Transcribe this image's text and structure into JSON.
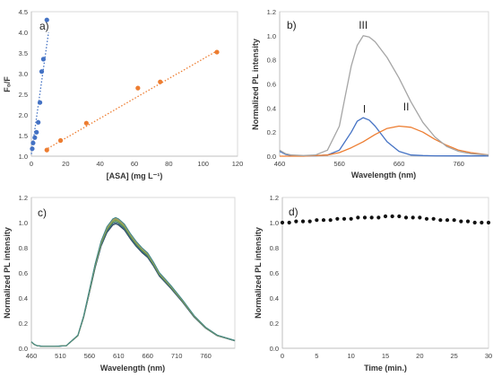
{
  "chart_data": [
    {
      "type": "scatter",
      "panel_label": "a)",
      "xlabel": "[ASA] (mg L⁻¹)",
      "ylabel": "F₀/F",
      "xlim": [
        0,
        120
      ],
      "ylim": [
        1.0,
        4.5
      ],
      "xticks": [
        "0",
        "20",
        "40",
        "60",
        "80",
        "100",
        "120"
      ],
      "yticks": [
        "1.0",
        "1.5",
        "2.0",
        "2.5",
        "3.0",
        "3.5",
        "4.0",
        "4.5"
      ],
      "grid": false,
      "colors": {
        "blue": "#4472c4",
        "orange": "#ed7d31"
      },
      "series": [
        {
          "x": [
            0.5,
            1.0,
            2.0,
            3.0,
            4.0,
            5.0,
            6.0,
            7.0,
            9.0
          ],
          "y": [
            1.18,
            1.32,
            1.45,
            1.58,
            1.82,
            2.3,
            3.05,
            3.35,
            4.3
          ],
          "trend": {
            "x": [
              0,
              10
            ],
            "y": [
              1.05,
              4.0
            ]
          }
        },
        {
          "x": [
            9,
            17,
            32,
            62,
            75,
            108
          ],
          "y": [
            1.15,
            1.38,
            1.8,
            2.65,
            2.8,
            3.52
          ],
          "trend": {
            "x": [
              8,
              108
            ],
            "y": [
              1.15,
              3.55
            ]
          }
        }
      ]
    },
    {
      "type": "line",
      "panel_label": "b)",
      "xlabel": "Wavelength (nm)",
      "ylabel": "Normalized PL intensity",
      "xlim": [
        460,
        810
      ],
      "ylim": [
        0,
        1.2
      ],
      "xticks": [
        "460",
        "560",
        "660",
        "760"
      ],
      "yticks": [
        "0.0",
        "0.2",
        "0.4",
        "0.6",
        "0.8",
        "1.0",
        "1.2"
      ],
      "grid": false,
      "annotations": [
        "I",
        "II",
        "III"
      ],
      "series": [
        {
          "color": "#4472c4",
          "x": [
            460,
            470,
            480,
            500,
            520,
            540,
            560,
            580,
            590,
            600,
            610,
            620,
            640,
            660,
            680,
            700,
            720,
            760,
            810
          ],
          "y": [
            0.04,
            0.015,
            0.005,
            0.003,
            0.003,
            0.01,
            0.05,
            0.2,
            0.29,
            0.32,
            0.3,
            0.25,
            0.12,
            0.04,
            0.01,
            0.005,
            0.003,
            0.002,
            0.002
          ]
        },
        {
          "color": "#ed7d31",
          "x": [
            460,
            500,
            540,
            560,
            580,
            600,
            620,
            640,
            660,
            680,
            700,
            720,
            740,
            760,
            780,
            810
          ],
          "y": [
            0.0,
            0.0,
            0.01,
            0.03,
            0.07,
            0.12,
            0.18,
            0.23,
            0.25,
            0.24,
            0.2,
            0.14,
            0.09,
            0.05,
            0.03,
            0.01
          ]
        },
        {
          "color": "#a5a5a5",
          "x": [
            460,
            470,
            480,
            500,
            520,
            540,
            560,
            570,
            580,
            590,
            600,
            610,
            620,
            640,
            660,
            680,
            700,
            720,
            740,
            760,
            780,
            810
          ],
          "y": [
            0.05,
            0.02,
            0.01,
            0.005,
            0.01,
            0.05,
            0.25,
            0.5,
            0.75,
            0.92,
            1.0,
            0.99,
            0.95,
            0.82,
            0.65,
            0.45,
            0.28,
            0.16,
            0.08,
            0.04,
            0.02,
            0.01
          ]
        }
      ]
    },
    {
      "type": "line",
      "panel_label": "c)",
      "xlabel": "Wavelength (nm)",
      "ylabel": "Normalized PL intensity",
      "xlim": [
        460,
        810
      ],
      "ylim": [
        0,
        1.2
      ],
      "xticks": [
        "460",
        "510",
        "560",
        "610",
        "660",
        "710",
        "760"
      ],
      "yticks": [
        "0.0",
        "0.2",
        "0.4",
        "0.6",
        "0.8",
        "1.0",
        "1.2"
      ],
      "grid": false,
      "x": [
        460,
        465,
        470,
        480,
        500,
        520,
        540,
        550,
        560,
        570,
        580,
        590,
        600,
        605,
        610,
        620,
        630,
        640,
        650,
        660,
        670,
        680,
        690,
        700,
        720,
        740,
        760,
        780,
        810
      ],
      "base": [
        0.05,
        0.03,
        0.02,
        0.015,
        0.015,
        0.02,
        0.1,
        0.25,
        0.45,
        0.65,
        0.82,
        0.93,
        0.99,
        1.0,
        0.99,
        0.95,
        0.88,
        0.82,
        0.77,
        0.73,
        0.66,
        0.58,
        0.53,
        0.48,
        0.37,
        0.25,
        0.16,
        0.1,
        0.06
      ],
      "series": [
        {
          "color": "#2f4b5e",
          "scale": 0.99
        },
        {
          "color": "#375e86",
          "scale": 1.0
        },
        {
          "color": "#4e8a5a",
          "scale": 1.01
        },
        {
          "color": "#6f9a3e",
          "scale": 1.02
        },
        {
          "color": "#8aa653",
          "scale": 1.025
        },
        {
          "color": "#a0a36b",
          "scale": 1.03
        },
        {
          "color": "#c49a5a",
          "scale": 1.035
        },
        {
          "color": "#3f8a8c",
          "scale": 1.04
        }
      ]
    },
    {
      "type": "scatter",
      "panel_label": "d)",
      "xlabel": "Time (min.)",
      "ylabel": "Normalized PL intensity",
      "xlim": [
        0,
        30
      ],
      "ylim": [
        0,
        1.2
      ],
      "xticks": [
        "0",
        "5",
        "10",
        "15",
        "20",
        "25",
        "30"
      ],
      "yticks": [
        "0.0",
        "0.2",
        "0.4",
        "0.6",
        "0.8",
        "1.0",
        "1.2"
      ],
      "grid": false,
      "colors": {
        "point": "#111111"
      },
      "x": [
        0,
        1,
        2,
        3,
        4,
        5,
        6,
        7,
        8,
        9,
        10,
        11,
        12,
        13,
        14,
        15,
        16,
        17,
        18,
        19,
        20,
        21,
        22,
        23,
        24,
        25,
        26,
        27,
        28,
        29,
        30
      ],
      "y": [
        1.0,
        1.0,
        1.01,
        1.01,
        1.01,
        1.02,
        1.02,
        1.02,
        1.03,
        1.03,
        1.03,
        1.04,
        1.04,
        1.04,
        1.04,
        1.05,
        1.05,
        1.05,
        1.04,
        1.04,
        1.04,
        1.03,
        1.03,
        1.02,
        1.02,
        1.02,
        1.01,
        1.01,
        1.0,
        1.0,
        1.0
      ]
    }
  ]
}
